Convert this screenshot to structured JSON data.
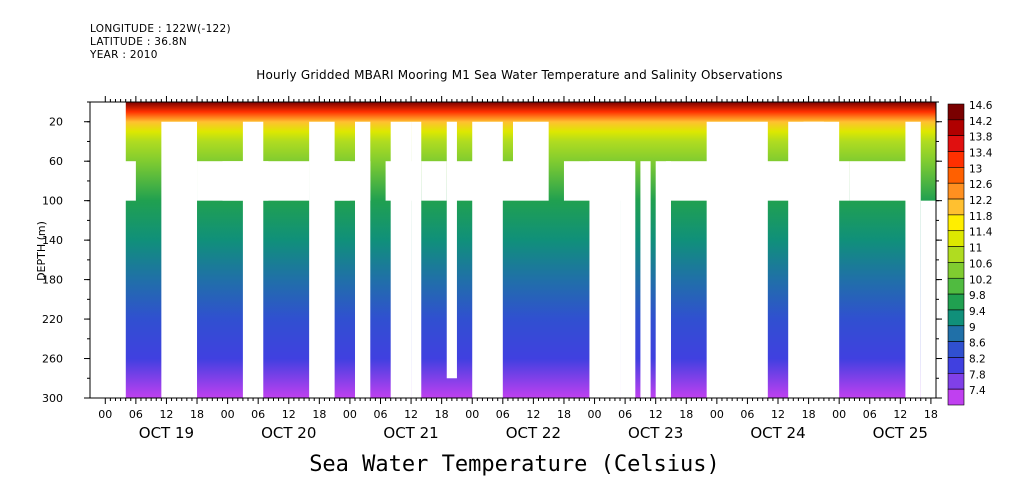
{
  "header": {
    "longitude": "LONGITUDE : 122W(-122)",
    "latitude": "LATITUDE : 36.8N",
    "year": "YEAR : 2010",
    "title": "Hourly Gridded MBARI Mooring M1 Sea Water Temperature and Salinity Observations"
  },
  "chart_data": {
    "type": "heatmap",
    "title": "Hourly Gridded MBARI Mooring M1 Sea Water Temperature and Salinity Observations",
    "xlabel": "",
    "ylabel": "DEPTH (m)",
    "bottom_title": "Sea Water Temperature (Celsius)",
    "ylim": [
      300,
      0
    ],
    "y_ticks": [
      20,
      60,
      100,
      140,
      180,
      220,
      260,
      300
    ],
    "x_hour_ticks": [
      "00",
      "06",
      "12",
      "18",
      "00",
      "06",
      "12",
      "18",
      "00",
      "06",
      "12",
      "18",
      "00",
      "06",
      "12",
      "18",
      "00",
      "06",
      "12",
      "18",
      "00",
      "06",
      "12",
      "18",
      "00",
      "06",
      "12",
      "18"
    ],
    "x_day_labels": [
      "OCT 19",
      "OCT 20",
      "OCT 21",
      "OCT 22",
      "OCT 23",
      "OCT 24",
      "OCT 25"
    ],
    "x_range_hours": [
      -3,
      163
    ],
    "colorbar": {
      "levels": [
        "14.6",
        "14.2",
        "13.8",
        "13.4",
        "13",
        "12.6",
        "12.2",
        "11.8",
        "11.4",
        "11",
        "10.6",
        "10.2",
        "9.8",
        "9.4",
        "9",
        "8.6",
        "8.2",
        "7.8",
        "7.4"
      ],
      "colors": [
        "#7a0000",
        "#b00000",
        "#e01010",
        "#ff3000",
        "#ff6000",
        "#ff9020",
        "#ffc030",
        "#ffee00",
        "#dde800",
        "#b0dc20",
        "#80cc30",
        "#50bb40",
        "#20a050",
        "#10907a",
        "#2070a8",
        "#3050d0",
        "#4040e0",
        "#8040e8",
        "#c040f0"
      ]
    },
    "temperature_profile": {
      "depth": [
        0,
        10,
        20,
        30,
        40,
        60,
        100,
        140,
        180,
        220,
        260,
        300
      ],
      "temperature": [
        14.6,
        13.6,
        12.4,
        11.5,
        11.0,
        10.6,
        10.0,
        9.4,
        9.0,
        8.6,
        8.2,
        7.6
      ]
    },
    "data_start_hour": 4,
    "gaps_full_depth": [
      [
        11,
        18
      ],
      [
        27,
        31
      ],
      [
        72,
        78
      ],
      [
        137,
        144
      ]
    ],
    "gaps_below_60m": [
      [
        18,
        40
      ],
      [
        40,
        52
      ],
      [
        55,
        61
      ],
      [
        62,
        67
      ],
      [
        68,
        80
      ],
      [
        90,
        103
      ],
      [
        110,
        123
      ],
      [
        128,
        146
      ]
    ],
    "partial_gaps": [
      {
        "hours": [
          3,
          6
        ],
        "depth": [
          60,
          100
        ]
      },
      {
        "hours": [
          23,
          32
        ],
        "depth": [
          60,
          100
        ]
      },
      {
        "hours": [
          40,
          45
        ],
        "depth": [
          20,
          300
        ]
      },
      {
        "hours": [
          45,
          48
        ],
        "depth": [
          60,
          100
        ]
      },
      {
        "hours": [
          49,
          52
        ],
        "depth": [
          20,
          300
        ]
      },
      {
        "hours": [
          56,
          60
        ],
        "depth": [
          20,
          300
        ]
      },
      {
        "hours": [
          60,
          62
        ],
        "depth": [
          20,
          300
        ]
      },
      {
        "hours": [
          67,
          69
        ],
        "depth": [
          20,
          280
        ]
      },
      {
        "hours": [
          80,
          87
        ],
        "depth": [
          20,
          100
        ]
      },
      {
        "hours": [
          95,
          101
        ],
        "depth": [
          60,
          300
        ]
      },
      {
        "hours": [
          101,
          104
        ],
        "depth": [
          60,
          300
        ]
      },
      {
        "hours": [
          105,
          107
        ],
        "depth": [
          60,
          300
        ]
      },
      {
        "hours": [
          108,
          111
        ],
        "depth": [
          60,
          300
        ]
      },
      {
        "hours": [
          118,
          130
        ],
        "depth": [
          20,
          300
        ]
      },
      {
        "hours": [
          134,
          141
        ],
        "depth": [
          20,
          300
        ]
      },
      {
        "hours": [
          146,
          158
        ],
        "depth": [
          60,
          100
        ]
      },
      {
        "hours": [
          157,
          160
        ],
        "depth": [
          20,
          300
        ]
      },
      {
        "hours": [
          160,
          163
        ],
        "depth": [
          100,
          300
        ]
      }
    ]
  }
}
